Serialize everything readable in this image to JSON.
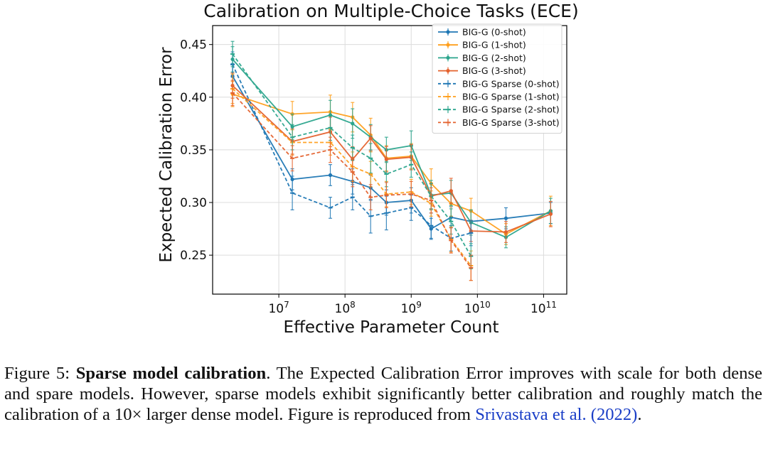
{
  "chart_data": {
    "type": "line",
    "title": "Calibration on Multiple-Choice Tasks (ECE)",
    "xlabel": "Effective Parameter Count",
    "ylabel": "Expected Calibration Error",
    "x_scale": "log10",
    "xlim_exp": [
      6.0,
      11.35
    ],
    "ylim": [
      0.213,
      0.468
    ],
    "x_ticks": [
      {
        "exp": 7,
        "base": "10",
        "sup": "7"
      },
      {
        "exp": 8,
        "base": "10",
        "sup": "8"
      },
      {
        "exp": 9,
        "base": "10",
        "sup": "9"
      },
      {
        "exp": 10,
        "base": "10",
        "sup": "10"
      },
      {
        "exp": 11,
        "base": "10",
        "sup": "11"
      }
    ],
    "y_ticks": [
      {
        "value": 0.25,
        "label": "0.25"
      },
      {
        "value": 0.3,
        "label": "0.30"
      },
      {
        "value": 0.35,
        "label": "0.35"
      },
      {
        "value": 0.4,
        "label": "0.40"
      },
      {
        "value": 0.45,
        "label": "0.45"
      }
    ],
    "grid": true,
    "legend_position": "top-right",
    "series": [
      {
        "name": "BIG-G (0-shot)",
        "color": "#1f77b4",
        "dashed": false,
        "x": [
          2000000,
          16000000,
          60000000,
          130000000,
          244000000,
          422000000,
          1000000000,
          2000000000,
          4000000000,
          8000000000,
          27000000000,
          128000000000
        ],
        "y": [
          0.42,
          0.322,
          0.326,
          0.32,
          0.314,
          0.3,
          0.302,
          0.275,
          0.286,
          0.282,
          0.285,
          0.29
        ],
        "err": [
          0.012,
          0.01,
          0.01,
          0.012,
          0.012,
          0.012,
          0.012,
          0.01,
          0.01,
          0.01,
          0.01,
          0.01
        ]
      },
      {
        "name": "BIG-G (1-shot)",
        "color": "#ff9f1c",
        "dashed": false,
        "x": [
          2000000,
          16000000,
          60000000,
          130000000,
          244000000,
          422000000,
          1000000000,
          2000000000,
          4000000000,
          8000000000,
          27000000000,
          128000000000
        ],
        "y": [
          0.403,
          0.384,
          0.386,
          0.381,
          0.364,
          0.342,
          0.344,
          0.318,
          0.299,
          0.292,
          0.27,
          0.292
        ],
        "err": [
          0.012,
          0.012,
          0.016,
          0.014,
          0.016,
          0.012,
          0.012,
          0.014,
          0.012,
          0.012,
          0.01,
          0.014
        ]
      },
      {
        "name": "BIG-G (2-shot)",
        "color": "#2ca58d",
        "dashed": false,
        "x": [
          2000000,
          16000000,
          60000000,
          130000000,
          244000000,
          422000000,
          1000000000,
          2000000000,
          4000000000,
          8000000000,
          27000000000,
          128000000000
        ],
        "y": [
          0.436,
          0.372,
          0.383,
          0.375,
          0.362,
          0.35,
          0.354,
          0.307,
          0.309,
          0.281,
          0.267,
          0.292
        ],
        "err": [
          0.012,
          0.012,
          0.014,
          0.014,
          0.012,
          0.012,
          0.014,
          0.014,
          0.012,
          0.012,
          0.01,
          0.012
        ]
      },
      {
        "name": "BIG-G (3-shot)",
        "color": "#e4622e",
        "dashed": false,
        "x": [
          2000000,
          16000000,
          60000000,
          130000000,
          244000000,
          422000000,
          1000000000,
          2000000000,
          4000000000,
          8000000000,
          27000000000,
          128000000000
        ],
        "y": [
          0.411,
          0.358,
          0.367,
          0.341,
          0.361,
          0.341,
          0.343,
          0.306,
          0.311,
          0.273,
          0.272,
          0.289
        ],
        "err": [
          0.012,
          0.012,
          0.014,
          0.012,
          0.012,
          0.012,
          0.012,
          0.012,
          0.012,
          0.01,
          0.01,
          0.012
        ]
      },
      {
        "name": "BIG-G Sparse (0-shot)",
        "color": "#1f77b4",
        "dashed": true,
        "x": [
          2000000,
          16000000,
          60000000,
          130000000,
          244000000,
          422000000,
          1000000000,
          2000000000,
          4000000000,
          8000000000
        ],
        "y": [
          0.431,
          0.309,
          0.295,
          0.305,
          0.287,
          0.29,
          0.295,
          0.278,
          0.266,
          0.271
        ],
        "err": [
          0.012,
          0.016,
          0.01,
          0.012,
          0.016,
          0.016,
          0.012,
          0.012,
          0.012,
          0.012
        ]
      },
      {
        "name": "BIG-G Sparse (1-shot)",
        "color": "#ff9f1c",
        "dashed": true,
        "x": [
          2000000,
          16000000,
          60000000,
          130000000,
          244000000,
          422000000,
          1000000000,
          2000000000,
          4000000000,
          8000000000
        ],
        "y": [
          0.408,
          0.357,
          0.357,
          0.334,
          0.327,
          0.308,
          0.31,
          0.299,
          0.265,
          0.24
        ],
        "err": [
          0.014,
          0.012,
          0.012,
          0.014,
          0.012,
          0.012,
          0.012,
          0.012,
          0.012,
          0.014
        ]
      },
      {
        "name": "BIG-G Sparse (2-shot)",
        "color": "#2ca58d",
        "dashed": true,
        "x": [
          2000000,
          16000000,
          60000000,
          130000000,
          244000000,
          422000000,
          1000000000,
          2000000000,
          4000000000,
          8000000000
        ],
        "y": [
          0.441,
          0.362,
          0.371,
          0.352,
          0.342,
          0.327,
          0.336,
          0.306,
          0.282,
          0.249
        ],
        "err": [
          0.012,
          0.012,
          0.012,
          0.012,
          0.014,
          0.012,
          0.012,
          0.012,
          0.012,
          0.012
        ]
      },
      {
        "name": "BIG-G Sparse (3-shot)",
        "color": "#e4622e",
        "dashed": true,
        "x": [
          2000000,
          16000000,
          60000000,
          130000000,
          244000000,
          422000000,
          1000000000,
          2000000000,
          4000000000,
          8000000000
        ],
        "y": [
          0.404,
          0.342,
          0.35,
          0.329,
          0.305,
          0.307,
          0.308,
          0.302,
          0.264,
          0.238
        ],
        "err": [
          0.012,
          0.012,
          0.012,
          0.014,
          0.012,
          0.012,
          0.012,
          0.012,
          0.012,
          0.012
        ]
      }
    ]
  },
  "caption": {
    "prefix": "Figure 5: ",
    "bold": "Sparse model calibration",
    "text": ". The Expected Calibration Error improves with scale for both dense and spare models. However, sparse models exhibit significantly better calibration and roughly match the calibration of a 10× larger dense model.  Figure is reproduced from ",
    "link": "Srivastava et al. (2022)",
    "suffix": "."
  }
}
